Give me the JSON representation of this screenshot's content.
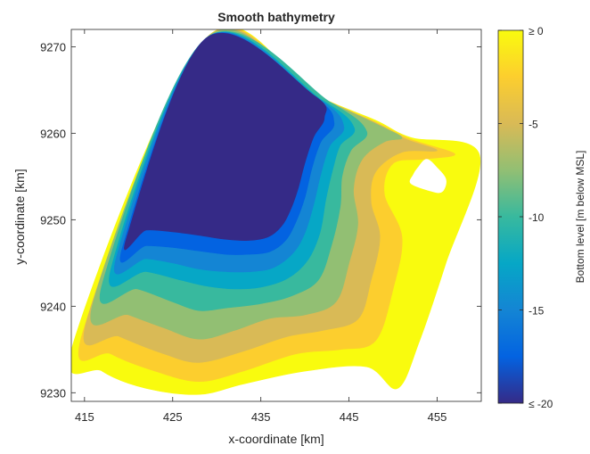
{
  "chart_data": {
    "type": "heatmap",
    "title": "Smooth bathymetry",
    "xlabel": "x-coordinate [km]",
    "ylabel": "y-coordinate [km]",
    "xlim": [
      413.5,
      460
    ],
    "ylim": [
      9229,
      9272
    ],
    "x_ticks": [
      415,
      425,
      435,
      445,
      455
    ],
    "y_ticks": [
      9230,
      9240,
      9250,
      9260,
      9270
    ],
    "x_tick_labels": [
      "415",
      "425",
      "435",
      "445",
      "455"
    ],
    "y_tick_labels": [
      "9230",
      "9240",
      "9250",
      "9260",
      "9270"
    ],
    "colorbar": {
      "label": "Bottom level [m below MSL]",
      "range": [
        -20,
        0
      ],
      "ticks": [
        0,
        -5,
        -10,
        -15,
        -20
      ],
      "tick_labels": [
        "≥ 0",
        "-5",
        "-10",
        "-15",
        "≤ -20"
      ],
      "colormap": "parula",
      "stops": [
        "#352a87",
        "#0363e1",
        "#1485d4",
        "#06a7c6",
        "#38b99e",
        "#92bf73",
        "#d9ba56",
        "#fcce2e",
        "#f9fb0e"
      ]
    },
    "domain_outline": [
      [
        413.8,
        9236
      ],
      [
        428.8,
        9271
      ],
      [
        459.8,
        9257.5
      ],
      [
        450.5,
        9230
      ],
      [
        413.8,
        9236
      ]
    ],
    "bands": [
      {
        "level": -2,
        "color": "#f9fb0e",
        "points": [
          [
            413.8,
            9236
          ],
          [
            417,
            9232.5
          ],
          [
            422,
            9230.5
          ],
          [
            428,
            9229.8
          ],
          [
            433,
            9231
          ],
          [
            440,
            9232.5
          ],
          [
            447,
            9233
          ],
          [
            450.5,
            9230.5
          ],
          [
            453,
            9236
          ],
          [
            456,
            9245
          ],
          [
            459.8,
            9257.5
          ],
          [
            452,
            9259.5
          ],
          [
            448,
            9261.5
          ],
          [
            441,
            9264.5
          ],
          [
            428.8,
            9271
          ]
        ]
      },
      {
        "level": -4,
        "color": "#fcce2e",
        "points": [
          [
            414.8,
            9237
          ],
          [
            418,
            9234.5
          ],
          [
            423,
            9232.5
          ],
          [
            428,
            9231.3
          ],
          [
            433,
            9232.5
          ],
          [
            439,
            9234.5
          ],
          [
            444,
            9235
          ],
          [
            448,
            9236
          ],
          [
            450,
            9242
          ],
          [
            451,
            9248
          ],
          [
            449,
            9253
          ],
          [
            450,
            9256.5
          ],
          [
            453.5,
            9257
          ],
          [
            457,
            9257.6
          ],
          [
            452,
            9259.3
          ],
          [
            448,
            9261.3
          ],
          [
            441,
            9264.5
          ],
          [
            428.8,
            9271
          ]
        ]
      },
      {
        "level": -6,
        "color": "#d9ba56",
        "points": [
          [
            415.3,
            9238.5
          ],
          [
            419,
            9236.5
          ],
          [
            424,
            9234.5
          ],
          [
            428,
            9233.5
          ],
          [
            433,
            9234.8
          ],
          [
            438,
            9236.5
          ],
          [
            442,
            9237.2
          ],
          [
            446,
            9238.5
          ],
          [
            447.5,
            9243
          ],
          [
            448.5,
            9248
          ],
          [
            447.5,
            9252
          ],
          [
            448,
            9255.5
          ],
          [
            451,
            9257.8
          ],
          [
            455,
            9258
          ],
          [
            451.5,
            9259.3
          ],
          [
            448,
            9261.2
          ],
          [
            441,
            9264.5
          ],
          [
            428.8,
            9271
          ]
        ]
      },
      {
        "level": -8,
        "color": "#92bf73",
        "points": [
          [
            416,
            9240.5
          ],
          [
            420,
            9239
          ],
          [
            424,
            9237.5
          ],
          [
            428,
            9236.2
          ],
          [
            432,
            9237.2
          ],
          [
            436,
            9238.6
          ],
          [
            440,
            9239
          ],
          [
            443.5,
            9240.5
          ],
          [
            445,
            9245
          ],
          [
            446,
            9249.5
          ],
          [
            445.5,
            9253.5
          ],
          [
            446.5,
            9257
          ],
          [
            449,
            9259
          ],
          [
            451,
            9259.5
          ],
          [
            448,
            9261.1
          ],
          [
            441,
            9264.5
          ],
          [
            428.8,
            9271
          ]
        ]
      },
      {
        "level": -10,
        "color": "#38b99e",
        "points": [
          [
            417,
            9242.5
          ],
          [
            421,
            9242
          ],
          [
            425,
            9240.5
          ],
          [
            428,
            9239.5
          ],
          [
            431,
            9239.8
          ],
          [
            435,
            9240.3
          ],
          [
            438.5,
            9241.2
          ],
          [
            441.5,
            9243
          ],
          [
            443,
            9247
          ],
          [
            444,
            9251.5
          ],
          [
            444.2,
            9255
          ],
          [
            445.2,
            9258
          ],
          [
            447,
            9260.2
          ],
          [
            443,
            9263.5
          ],
          [
            428.8,
            9271
          ]
        ]
      },
      {
        "level": -12,
        "color": "#06a7c6",
        "points": [
          [
            418,
            9244.3
          ],
          [
            422,
            9244
          ],
          [
            426,
            9243
          ],
          [
            429,
            9242.3
          ],
          [
            432,
            9242
          ],
          [
            435,
            9242.2
          ],
          [
            438,
            9243.2
          ],
          [
            440.3,
            9245.3
          ],
          [
            441.7,
            9248.5
          ],
          [
            442.4,
            9252.5
          ],
          [
            443.2,
            9256
          ],
          [
            444,
            9258.6
          ],
          [
            445.6,
            9260.6
          ],
          [
            442,
            9263.8
          ],
          [
            428.8,
            9271
          ]
        ]
      },
      {
        "level": -15,
        "color": "#1485d4",
        "points": [
          [
            418.6,
            9245.6
          ],
          [
            422,
            9245.5
          ],
          [
            425,
            9245
          ],
          [
            428,
            9244.3
          ],
          [
            431,
            9244
          ],
          [
            434,
            9244
          ],
          [
            436.5,
            9244.5
          ],
          [
            438.7,
            9246.2
          ],
          [
            440,
            9248.5
          ],
          [
            441,
            9251.8
          ],
          [
            441.8,
            9255.3
          ],
          [
            442.8,
            9258.5
          ],
          [
            444.4,
            9260.8
          ],
          [
            441.5,
            9264
          ],
          [
            428.8,
            9271
          ]
        ]
      },
      {
        "level": -18,
        "color": "#0363e1",
        "points": [
          [
            419.3,
            9246.8
          ],
          [
            422,
            9247
          ],
          [
            425,
            9246.8
          ],
          [
            428,
            9246.4
          ],
          [
            431,
            9246
          ],
          [
            433.6,
            9246
          ],
          [
            436,
            9246.3
          ],
          [
            437.8,
            9247.6
          ],
          [
            439,
            9249.8
          ],
          [
            440,
            9252.6
          ],
          [
            440.8,
            9256
          ],
          [
            441.8,
            9259
          ],
          [
            443.3,
            9261.2
          ],
          [
            441,
            9264.2
          ],
          [
            428.8,
            9271
          ]
        ]
      },
      {
        "level": -20,
        "color": "#352a87",
        "points": [
          [
            419.8,
            9248
          ],
          [
            422,
            9248.8
          ],
          [
            425,
            9248.6
          ],
          [
            428,
            9248.2
          ],
          [
            430.5,
            9247.8
          ],
          [
            433.5,
            9247.6
          ],
          [
            435.8,
            9248
          ],
          [
            437.3,
            9249.2
          ],
          [
            438.3,
            9251
          ],
          [
            439.2,
            9253.5
          ],
          [
            440,
            9256.6
          ],
          [
            441,
            9259.6
          ],
          [
            442.2,
            9261.8
          ],
          [
            441,
            9264.4
          ],
          [
            428.8,
            9271
          ]
        ]
      },
      {
        "level": 1,
        "color": "#ffffff",
        "points": [
          [
            452,
            9254.2
          ],
          [
            454,
            9253.4
          ],
          [
            455.5,
            9253.2
          ],
          [
            456,
            9254.6
          ],
          [
            455,
            9256
          ],
          [
            453.8,
            9257
          ],
          [
            452.8,
            9256
          ],
          [
            452.3,
            9255.2
          ]
        ]
      }
    ]
  }
}
